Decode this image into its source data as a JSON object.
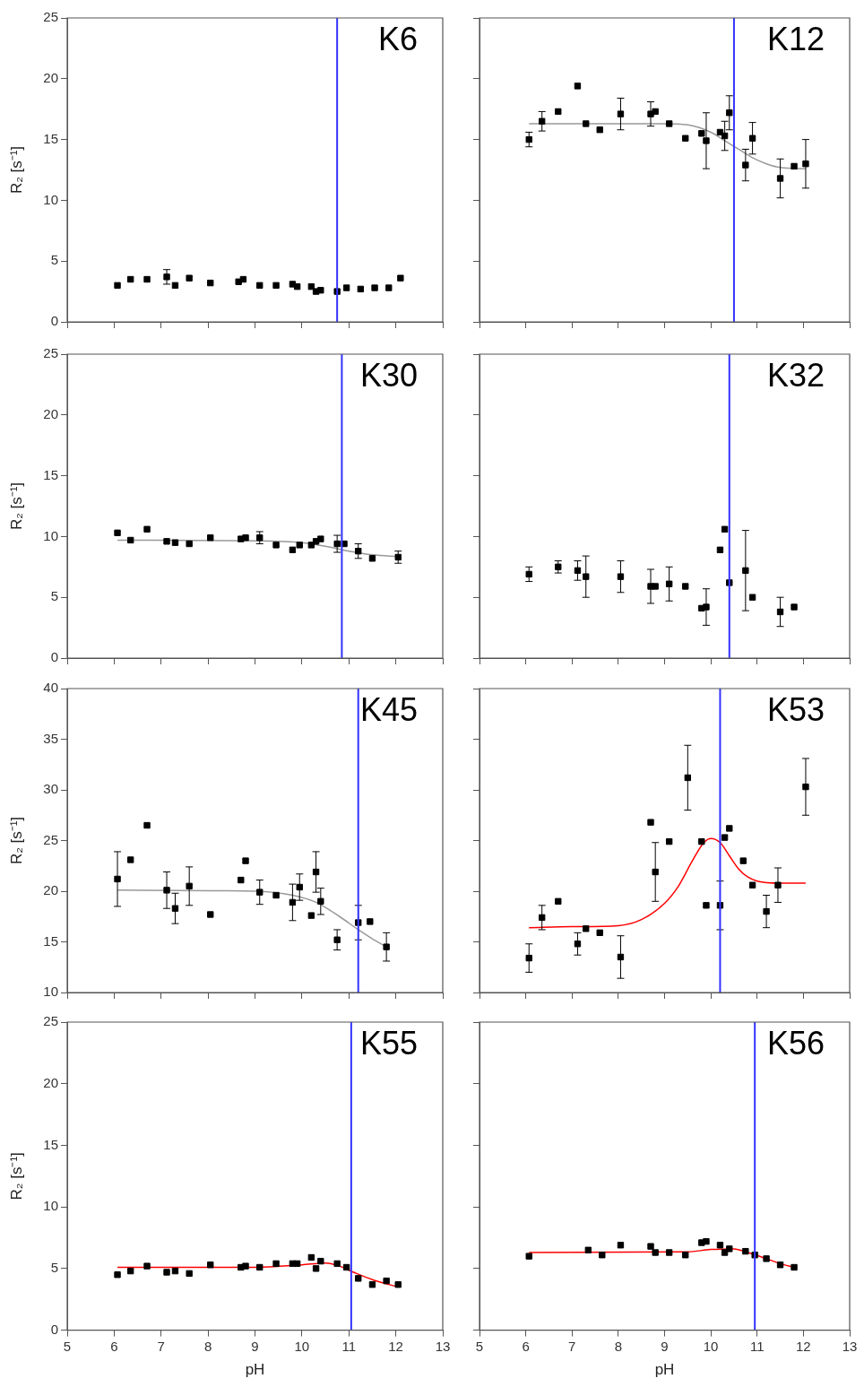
{
  "chart_data": [
    {
      "type": "scatter",
      "title": "K6",
      "ylabel": "R₂ [s⁻¹]",
      "xlim": [
        5,
        13
      ],
      "xticks": [
        5,
        6,
        7,
        8,
        9,
        10,
        11,
        12,
        13
      ],
      "ylim": [
        0,
        25
      ],
      "yticks": [
        0,
        5,
        10,
        15,
        20,
        25
      ],
      "tick_labels": "y",
      "marker": "square",
      "ref_lines": [
        {
          "axis": "x",
          "value": 10.75,
          "color": "#3333ff"
        }
      ],
      "series": [
        {
          "type": "scatter",
          "color": "#000000",
          "x": [
            6.07,
            6.35,
            6.7,
            7.12,
            7.3,
            7.6,
            8.05,
            8.65,
            8.75,
            9.1,
            9.45,
            9.8,
            9.9,
            10.2,
            10.3,
            10.4,
            10.75,
            10.95,
            11.25,
            11.55,
            11.85,
            12.1
          ],
          "values": [
            3.0,
            3.5,
            3.5,
            3.7,
            3.0,
            3.6,
            3.2,
            3.3,
            3.5,
            3.0,
            3.0,
            3.1,
            2.9,
            2.9,
            2.5,
            2.6,
            2.5,
            2.8,
            2.7,
            2.8,
            2.8,
            3.6
          ],
          "errors": [
            null,
            null,
            null,
            0.6,
            null,
            null,
            null,
            null,
            null,
            null,
            null,
            null,
            null,
            null,
            null,
            null,
            null,
            null,
            null,
            null,
            null,
            null
          ]
        }
      ]
    },
    {
      "type": "scatter",
      "title": "K12",
      "xlim": [
        5,
        13
      ],
      "xticks": [
        5,
        6,
        7,
        8,
        9,
        10,
        11,
        12,
        13
      ],
      "ylim": [
        0,
        25
      ],
      "yticks": [
        0,
        5,
        10,
        15,
        20,
        25
      ],
      "tick_labels": false,
      "marker": "square",
      "ref_lines": [
        {
          "axis": "x",
          "value": 10.5,
          "color": "#3333ff"
        }
      ],
      "series": [
        {
          "type": "scatter",
          "color": "#000000",
          "x": [
            6.07,
            6.35,
            6.7,
            7.12,
            7.3,
            7.6,
            8.05,
            8.7,
            8.8,
            9.1,
            9.45,
            9.8,
            9.9,
            10.2,
            10.3,
            10.4,
            10.75,
            10.9,
            11.5,
            11.8,
            12.05
          ],
          "values": [
            15.0,
            16.5,
            17.3,
            19.4,
            16.3,
            15.8,
            17.1,
            17.1,
            17.3,
            16.3,
            15.1,
            15.5,
            14.9,
            15.6,
            15.3,
            17.2,
            12.9,
            15.1,
            11.8,
            12.8,
            13.0
          ],
          "errors": [
            0.6,
            0.8,
            null,
            null,
            null,
            null,
            1.3,
            1.0,
            null,
            null,
            null,
            null,
            2.3,
            null,
            1.2,
            1.4,
            1.3,
            1.3,
            1.6,
            null,
            2.0
          ]
        },
        {
          "type": "line",
          "marker": "none",
          "color": "#999999",
          "x": [
            6.07,
            9.0,
            9.5,
            10.0,
            10.3,
            10.6,
            10.9,
            11.2,
            11.5,
            12.05
          ],
          "values": [
            16.3,
            16.3,
            16.2,
            15.6,
            14.9,
            14.2,
            13.5,
            13.0,
            12.7,
            12.6
          ]
        }
      ]
    },
    {
      "type": "scatter",
      "title": "K30",
      "ylabel": "R₂ [s⁻¹]",
      "xlim": [
        5,
        13
      ],
      "xticks": [
        5,
        6,
        7,
        8,
        9,
        10,
        11,
        12,
        13
      ],
      "ylim": [
        0,
        25
      ],
      "yticks": [
        0,
        5,
        10,
        15,
        20,
        25
      ],
      "tick_labels": "y",
      "marker": "square",
      "ref_lines": [
        {
          "axis": "x",
          "value": 10.85,
          "color": "#3333ff"
        }
      ],
      "series": [
        {
          "type": "scatter",
          "color": "#000000",
          "x": [
            6.07,
            6.35,
            6.7,
            7.12,
            7.3,
            7.6,
            8.05,
            8.7,
            8.8,
            9.1,
            9.45,
            9.8,
            9.95,
            10.2,
            10.3,
            10.4,
            10.75,
            10.9,
            11.2,
            11.5,
            12.05
          ],
          "values": [
            10.3,
            9.7,
            10.6,
            9.6,
            9.5,
            9.4,
            9.9,
            9.8,
            9.9,
            9.9,
            9.3,
            8.9,
            9.3,
            9.3,
            9.6,
            9.8,
            9.4,
            9.4,
            8.8,
            8.2,
            8.3
          ],
          "errors": [
            null,
            null,
            null,
            null,
            null,
            null,
            null,
            null,
            null,
            0.5,
            null,
            null,
            null,
            null,
            null,
            null,
            0.7,
            null,
            0.6,
            null,
            0.5
          ]
        },
        {
          "type": "line",
          "marker": "none",
          "color": "#999999",
          "x": [
            6.07,
            9.0,
            10.0,
            10.5,
            11.0,
            11.5,
            12.05
          ],
          "values": [
            9.7,
            9.65,
            9.5,
            9.2,
            8.8,
            8.5,
            8.35
          ]
        }
      ]
    },
    {
      "type": "scatter",
      "title": "K32",
      "xlim": [
        5,
        13
      ],
      "xticks": [
        5,
        6,
        7,
        8,
        9,
        10,
        11,
        12,
        13
      ],
      "ylim": [
        0,
        25
      ],
      "yticks": [
        0,
        5,
        10,
        15,
        20,
        25
      ],
      "tick_labels": false,
      "marker": "square",
      "ref_lines": [
        {
          "axis": "x",
          "value": 10.4,
          "color": "#3333ff"
        }
      ],
      "series": [
        {
          "type": "scatter",
          "color": "#000000",
          "x": [
            6.07,
            6.7,
            7.12,
            7.3,
            8.05,
            8.7,
            8.8,
            9.1,
            9.45,
            9.8,
            9.9,
            10.2,
            10.3,
            10.4,
            10.75,
            10.9,
            11.5,
            11.8
          ],
          "values": [
            6.9,
            7.5,
            7.2,
            6.7,
            6.7,
            5.9,
            5.9,
            6.1,
            5.9,
            4.1,
            4.2,
            8.9,
            10.6,
            6.2,
            7.2,
            5.0,
            3.8,
            4.2
          ],
          "errors": [
            0.6,
            0.5,
            0.8,
            1.7,
            1.3,
            1.4,
            null,
            1.4,
            null,
            null,
            1.5,
            null,
            null,
            null,
            3.3,
            null,
            1.2,
            null
          ]
        }
      ]
    },
    {
      "type": "scatter",
      "title": "K45",
      "ylabel": "R₂ [s⁻¹]",
      "xlim": [
        5,
        13
      ],
      "xticks": [
        5,
        6,
        7,
        8,
        9,
        10,
        11,
        12,
        13
      ],
      "ylim": [
        10,
        40
      ],
      "yticks": [
        10,
        15,
        20,
        25,
        30,
        35,
        40
      ],
      "tick_labels": "y",
      "marker": "square",
      "ref_lines": [
        {
          "axis": "x",
          "value": 11.2,
          "color": "#3333ff"
        }
      ],
      "series": [
        {
          "type": "scatter",
          "color": "#000000",
          "x": [
            6.07,
            6.35,
            6.7,
            7.12,
            7.3,
            7.6,
            8.05,
            8.7,
            8.8,
            9.1,
            9.45,
            9.8,
            9.95,
            10.2,
            10.3,
            10.4,
            10.75,
            11.2,
            11.45,
            11.8
          ],
          "values": [
            21.2,
            23.1,
            26.5,
            20.1,
            18.3,
            20.5,
            17.7,
            21.1,
            23.0,
            19.9,
            19.6,
            18.9,
            20.4,
            17.6,
            21.9,
            19.0,
            15.2,
            16.9,
            17.0,
            14.5
          ],
          "errors": [
            2.7,
            null,
            null,
            1.8,
            1.5,
            1.9,
            null,
            null,
            null,
            1.2,
            null,
            1.8,
            1.3,
            null,
            2.0,
            1.3,
            1.0,
            1.7,
            null,
            1.4
          ]
        },
        {
          "type": "line",
          "marker": "none",
          "color": "#999999",
          "x": [
            6.07,
            9.0,
            9.8,
            10.3,
            10.8,
            11.2,
            11.5,
            11.8
          ],
          "values": [
            20.1,
            20.0,
            19.6,
            18.9,
            17.5,
            16.2,
            15.3,
            14.5
          ]
        }
      ]
    },
    {
      "type": "scatter",
      "title": "K53",
      "xlim": [
        5,
        13
      ],
      "xticks": [
        5,
        6,
        7,
        8,
        9,
        10,
        11,
        12,
        13
      ],
      "ylim": [
        10,
        40
      ],
      "yticks": [
        10,
        15,
        20,
        25,
        30,
        35,
        40
      ],
      "tick_labels": false,
      "marker": "square",
      "ref_lines": [
        {
          "axis": "x",
          "value": 10.2,
          "color": "#3333ff"
        }
      ],
      "series": [
        {
          "type": "scatter",
          "color": "#000000",
          "x": [
            6.07,
            6.35,
            6.7,
            7.12,
            7.3,
            7.6,
            8.05,
            8.7,
            8.8,
            9.1,
            9.5,
            9.8,
            9.9,
            10.2,
            10.3,
            10.4,
            10.7,
            10.9,
            11.2,
            11.45,
            12.05
          ],
          "values": [
            13.4,
            17.4,
            19.0,
            14.8,
            16.3,
            15.9,
            13.5,
            26.8,
            21.9,
            24.9,
            31.2,
            24.9,
            18.6,
            18.6,
            25.3,
            26.2,
            23.0,
            20.6,
            18.0,
            20.6,
            30.3
          ],
          "errors": [
            1.4,
            1.2,
            null,
            1.1,
            null,
            null,
            2.1,
            null,
            2.9,
            null,
            3.2,
            null,
            null,
            2.4,
            null,
            null,
            null,
            null,
            1.6,
            1.7,
            2.8
          ]
        },
        {
          "type": "line",
          "marker": "none",
          "color": "#ff0000",
          "x": [
            6.07,
            7.0,
            8.0,
            8.5,
            9.0,
            9.3,
            9.6,
            9.85,
            10.0,
            10.2,
            10.4,
            10.6,
            10.8,
            11.0,
            11.5,
            12.05
          ],
          "values": [
            16.4,
            16.5,
            16.6,
            17.2,
            18.8,
            20.5,
            23.0,
            24.8,
            25.2,
            24.8,
            23.5,
            22.2,
            21.4,
            21.0,
            20.8,
            20.8
          ]
        }
      ]
    },
    {
      "type": "scatter",
      "title": "K55",
      "xlabel": "pH",
      "ylabel": "R₂ [s⁻¹]",
      "xlim": [
        5,
        13
      ],
      "xticks": [
        5,
        6,
        7,
        8,
        9,
        10,
        11,
        12,
        13
      ],
      "ylim": [
        0,
        25
      ],
      "yticks": [
        0,
        5,
        10,
        15,
        20,
        25
      ],
      "marker": "square",
      "ref_lines": [
        {
          "axis": "x",
          "value": 11.05,
          "color": "#3333ff"
        }
      ],
      "series": [
        {
          "type": "scatter",
          "color": "#000000",
          "x": [
            6.07,
            6.35,
            6.7,
            7.12,
            7.3,
            7.6,
            8.05,
            8.7,
            8.8,
            9.1,
            9.45,
            9.8,
            9.9,
            10.2,
            10.3,
            10.4,
            10.75,
            10.95,
            11.2,
            11.5,
            11.8,
            12.05
          ],
          "values": [
            4.5,
            4.8,
            5.2,
            4.7,
            4.8,
            4.6,
            5.3,
            5.1,
            5.2,
            5.1,
            5.4,
            5.4,
            5.4,
            5.9,
            5.0,
            5.6,
            5.4,
            5.1,
            4.2,
            3.7,
            4.0,
            3.7
          ]
        },
        {
          "type": "line",
          "marker": "none",
          "color": "#ff0000",
          "x": [
            6.07,
            9.0,
            10.0,
            10.5,
            10.8,
            11.1,
            11.5,
            12.05
          ],
          "values": [
            5.1,
            5.1,
            5.3,
            5.45,
            5.2,
            4.7,
            4.1,
            3.5
          ]
        }
      ]
    },
    {
      "type": "scatter",
      "title": "K56",
      "xlabel": "pH",
      "xlim": [
        5,
        13
      ],
      "xticks": [
        5,
        6,
        7,
        8,
        9,
        10,
        11,
        12,
        13
      ],
      "ylim": [
        0,
        25
      ],
      "yticks": [
        0,
        5,
        10,
        15,
        20,
        25
      ],
      "tick_labels": "x",
      "marker": "square",
      "ref_lines": [
        {
          "axis": "x",
          "value": 10.95,
          "color": "#3333ff"
        }
      ],
      "series": [
        {
          "type": "scatter",
          "color": "#000000",
          "x": [
            6.07,
            7.35,
            7.65,
            8.05,
            8.7,
            8.8,
            9.1,
            9.45,
            9.8,
            9.9,
            10.2,
            10.3,
            10.4,
            10.75,
            10.95,
            11.2,
            11.5,
            11.8
          ],
          "values": [
            6.0,
            6.5,
            6.1,
            6.9,
            6.8,
            6.3,
            6.3,
            6.1,
            7.1,
            7.2,
            6.9,
            6.3,
            6.6,
            6.4,
            6.1,
            5.8,
            5.3,
            5.1
          ]
        },
        {
          "type": "line",
          "marker": "none",
          "color": "#ff0000",
          "x": [
            6.07,
            9.5,
            10.0,
            10.5,
            10.8,
            11.2,
            11.5,
            11.8
          ],
          "values": [
            6.3,
            6.35,
            6.55,
            6.6,
            6.3,
            5.8,
            5.4,
            5.1
          ]
        }
      ]
    }
  ]
}
